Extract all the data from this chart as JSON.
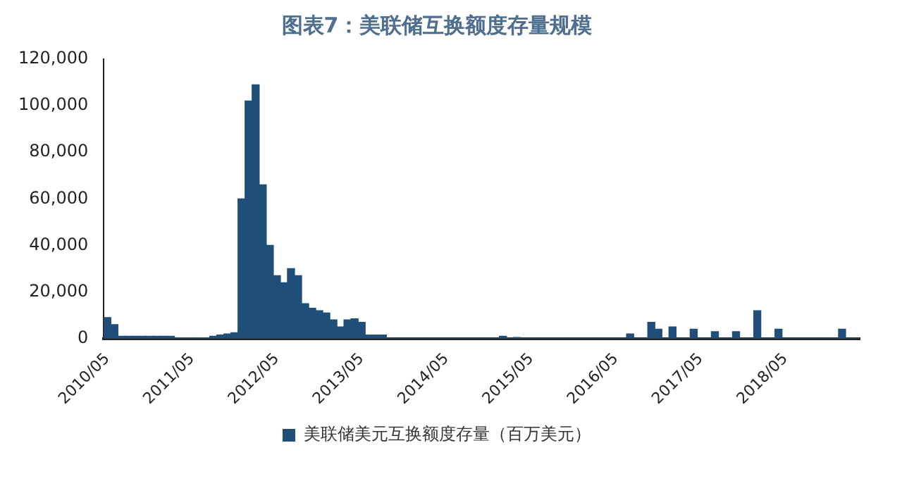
{
  "chart_data": {
    "type": "bar",
    "title": "图表7：美联储互换额度存量规模",
    "categories": [
      "2010/05",
      null,
      null,
      null,
      null,
      null,
      null,
      null,
      null,
      null,
      null,
      null,
      "2011/05",
      null,
      null,
      null,
      null,
      null,
      null,
      null,
      null,
      null,
      null,
      null,
      "2012/05",
      null,
      null,
      null,
      null,
      null,
      null,
      null,
      null,
      null,
      null,
      null,
      "2013/05",
      null,
      null,
      null,
      null,
      null,
      null,
      null,
      null,
      null,
      null,
      null,
      "2014/05",
      null,
      null,
      null,
      null,
      null,
      null,
      null,
      null,
      null,
      null,
      null,
      "2015/05",
      null,
      null,
      null,
      null,
      null,
      null,
      null,
      null,
      null,
      null,
      null,
      "2016/05",
      null,
      null,
      null,
      null,
      null,
      null,
      null,
      null,
      null,
      null,
      null,
      "2017/05",
      null,
      null,
      null,
      null,
      null,
      null,
      null,
      null,
      null,
      null,
      null,
      "2018/05",
      null,
      null,
      null,
      null,
      null,
      null,
      null,
      null,
      null,
      null
    ],
    "series": [
      {
        "name": "美联储美元互换额度存量（百万美元）",
        "color": "#1f4e79",
        "values": [
          9000,
          6000,
          1000,
          1000,
          1000,
          1000,
          1000,
          1000,
          1000,
          1000,
          300,
          300,
          300,
          300,
          300,
          1000,
          1500,
          2000,
          2500,
          60000,
          102000,
          109000,
          66000,
          40000,
          27000,
          24000,
          30000,
          27000,
          15000,
          13000,
          12000,
          11000,
          8000,
          5000,
          8000,
          8500,
          7000,
          1500,
          1500,
          1500,
          200,
          200,
          200,
          200,
          200,
          200,
          200,
          200,
          200,
          200,
          200,
          200,
          200,
          200,
          200,
          200,
          1000,
          200,
          500,
          200,
          200,
          200,
          200,
          200,
          200,
          200,
          200,
          200,
          200,
          200,
          200,
          200,
          200,
          200,
          2000,
          200,
          200,
          7000,
          4000,
          200,
          5000,
          200,
          200,
          4000,
          200,
          200,
          3000,
          200,
          200,
          3000,
          200,
          200,
          12000,
          200,
          200,
          4000,
          200,
          200,
          200,
          200,
          200,
          200,
          200,
          200,
          4000,
          200,
          200
        ]
      }
    ],
    "ylim": [
      0,
      120000
    ],
    "yticks": [
      {
        "value": 0,
        "label": "0"
      },
      {
        "value": 20000,
        "label": "20,000"
      },
      {
        "value": 40000,
        "label": "40,000"
      },
      {
        "value": 60000,
        "label": "60,000"
      },
      {
        "value": 80000,
        "label": "80,000"
      },
      {
        "value": 100000,
        "label": "100,000"
      },
      {
        "value": 120000,
        "label": "120,000"
      }
    ],
    "grid": false,
    "legend": "bottom"
  }
}
